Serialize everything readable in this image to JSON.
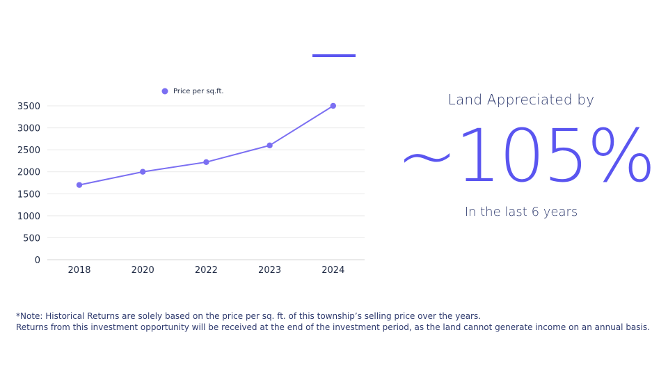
{
  "chart_data": {
    "type": "line",
    "categories": [
      "2018",
      "2020",
      "2022",
      "2023",
      "2024"
    ],
    "series": [
      {
        "name": "Price per sq.ft.",
        "values": [
          1700,
          2000,
          2220,
          2600,
          3500
        ]
      }
    ],
    "y_ticks": [
      0,
      500,
      1000,
      1500,
      2000,
      2500,
      3000,
      3500
    ],
    "ylim": [
      0,
      3500
    ],
    "grid": true,
    "legend_position": "top",
    "line_color": "#7b6ff2"
  },
  "highlight": {
    "heading": "Land Appreciated by",
    "value": "~105%",
    "subtext": "In the last 6 years"
  },
  "notes": {
    "line1": "*Note: Historical Returns are solely based on the price per sq. ft. of this township’s selling price over the years.",
    "line2": "Returns from this investment opportunity will be received at the end of the investment period, as the land cannot generate income on an annual basis."
  },
  "colors": {
    "accent": "#5a55f0",
    "text": "#2e3a6e"
  }
}
